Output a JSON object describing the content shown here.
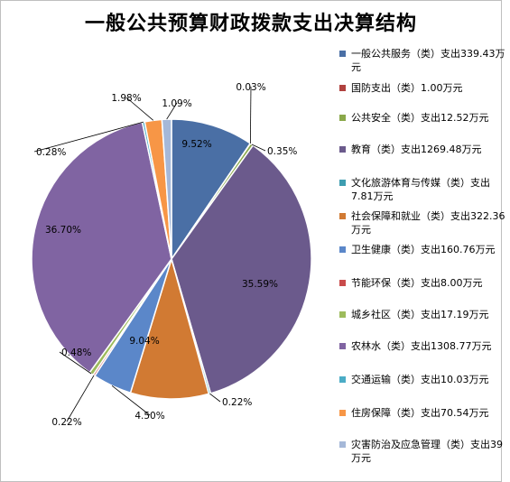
{
  "chart_data": {
    "type": "pie",
    "title": "一般公共预算财政拨款支出决算结构",
    "legend_position": "right",
    "slices": [
      {
        "name": "一般公共服务（类）支出339.43万元",
        "value": 339.43,
        "percent": "9.52%",
        "color": "#4a6fa5"
      },
      {
        "name": "国防支出（类）1.00万元",
        "value": 1.0,
        "percent": "0.03%",
        "color": "#b0413e"
      },
      {
        "name": "公共安全（类）支出12.52万元",
        "value": 12.52,
        "percent": "0.35%",
        "color": "#8aa84a"
      },
      {
        "name": "教育（类）支出1269.48万元",
        "value": 1269.48,
        "percent": "35.59%",
        "color": "#6b5a8c"
      },
      {
        "name": "文化旅游体育与传媒（类）支出7.81万元",
        "value": 7.81,
        "percent": "0.22%",
        "color": "#3e9db0"
      },
      {
        "name": "社会保障和就业（类）支出322.36万元",
        "value": 322.36,
        "percent": "9.04%",
        "color": "#d17a33"
      },
      {
        "name": "卫生健康（类）支出160.76万元",
        "value": 160.76,
        "percent": "4.50%",
        "color": "#5b87c9"
      },
      {
        "name": "节能环保（类）支出8.00万元",
        "value": 8.0,
        "percent": "0.22%",
        "color": "#c94b4b"
      },
      {
        "name": "城乡社区（类）支出17.19万元",
        "value": 17.19,
        "percent": "0.48%",
        "color": "#9dbb5c"
      },
      {
        "name": "农林水（类）支出1308.77万元",
        "value": 1308.77,
        "percent": "36.70%",
        "color": "#8064a2"
      },
      {
        "name": "交通运输（类）支出10.03万元",
        "value": 10.03,
        "percent": "0.28%",
        "color": "#4bacc6"
      },
      {
        "name": "住房保障（类）支出70.54万元",
        "value": 70.54,
        "percent": "1.98%",
        "color": "#f79646"
      },
      {
        "name": "灾害防治及应急管理（类）支出39万元",
        "value": 39,
        "percent": "1.09%",
        "color": "#a5b8d8"
      }
    ]
  }
}
